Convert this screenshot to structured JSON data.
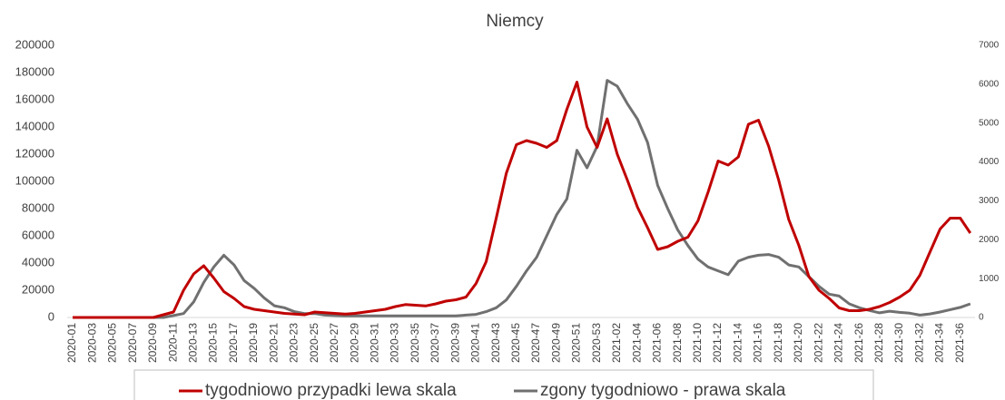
{
  "chart_data": {
    "type": "line",
    "title": "Niemcy",
    "categories": [
      "2020-01",
      null,
      "2020-03",
      null,
      "2020-05",
      null,
      "2020-07",
      null,
      "2020-09",
      null,
      "2020-11",
      null,
      "2020-13",
      null,
      "2020-15",
      null,
      "2020-17",
      null,
      "2020-19",
      null,
      "2020-21",
      null,
      "2020-23",
      null,
      "2020-25",
      null,
      "2020-27",
      null,
      "2020-29",
      null,
      "2020-31",
      null,
      "2020-33",
      null,
      "2020-35",
      null,
      "2020-37",
      null,
      "2020-39",
      null,
      "2020-41",
      null,
      "2020-43",
      null,
      "2020-45",
      null,
      "2020-47",
      null,
      "2020-49",
      null,
      "2020-51",
      null,
      "2020-53",
      null,
      "2021-02",
      null,
      "2021-04",
      null,
      "2021-06",
      null,
      "2021-08",
      null,
      "2021-10",
      null,
      "2021-12",
      null,
      "2021-14",
      null,
      "2021-16",
      null,
      "2021-18",
      null,
      "2021-20",
      null,
      "2021-22",
      null,
      "2021-24",
      null,
      "2021-26",
      null,
      "2021-28",
      null,
      "2021-30",
      null,
      "2021-32",
      null,
      "2021-34",
      null,
      "2021-36",
      null
    ],
    "series": [
      {
        "name": "tygodniowo przypadki lewa skala",
        "color": "#c00000",
        "values": [
          0,
          0,
          0,
          0,
          0,
          0,
          0,
          0,
          0,
          2000,
          4000,
          20000,
          32000,
          38000,
          29000,
          19000,
          14000,
          8000,
          6000,
          5000,
          4000,
          3000,
          2500,
          2000,
          4000,
          3500,
          3000,
          2500,
          3000,
          4000,
          5000,
          6000,
          8000,
          9500,
          9000,
          8500,
          10000,
          12000,
          13000,
          15000,
          25000,
          41000,
          73000,
          106000,
          127000,
          130000,
          128000,
          125000,
          130000,
          153000,
          173000,
          140000,
          125000,
          146000,
          120000,
          101000,
          81000,
          66000,
          50000,
          52000,
          56000,
          59000,
          71000,
          92000,
          115000,
          112000,
          118000,
          142000,
          145000,
          126000,
          101000,
          72000,
          53000,
          30000,
          20000,
          14000,
          7000,
          5000,
          5000,
          6000,
          8000,
          11000,
          15000,
          20000,
          31000,
          48000,
          65000,
          73000,
          73000,
          62000
        ]
      },
      {
        "name": "zgony tygodniowo - prawa skala",
        "color": "#707070",
        "axis": "y2",
        "values": [
          0,
          0,
          0,
          0,
          0,
          0,
          0,
          0,
          0,
          0,
          50,
          100,
          400,
          900,
          1300,
          1600,
          1350,
          950,
          750,
          500,
          300,
          250,
          150,
          100,
          100,
          60,
          50,
          40,
          40,
          40,
          40,
          40,
          40,
          40,
          40,
          40,
          40,
          40,
          40,
          60,
          80,
          150,
          250,
          450,
          800,
          1200,
          1550,
          2100,
          2650,
          3050,
          4300,
          3850,
          4400,
          6100,
          5950,
          5500,
          5100,
          4500,
          3400,
          2800,
          2250,
          1850,
          1500,
          1300,
          1200,
          1100,
          1450,
          1550,
          1600,
          1620,
          1550,
          1350,
          1300,
          1050,
          800,
          600,
          550,
          350,
          250,
          180,
          120,
          160,
          130,
          110,
          60,
          90,
          140,
          200,
          260,
          350
        ]
      }
    ],
    "ylim": [
      0,
      200000
    ],
    "yticks": [
      0,
      20000,
      40000,
      60000,
      80000,
      100000,
      120000,
      140000,
      160000,
      180000,
      200000
    ],
    "y2lim": [
      0,
      7000
    ],
    "y2ticks": [
      0,
      1000,
      2000,
      3000,
      4000,
      5000,
      6000,
      7000
    ],
    "legend": "bottom"
  }
}
